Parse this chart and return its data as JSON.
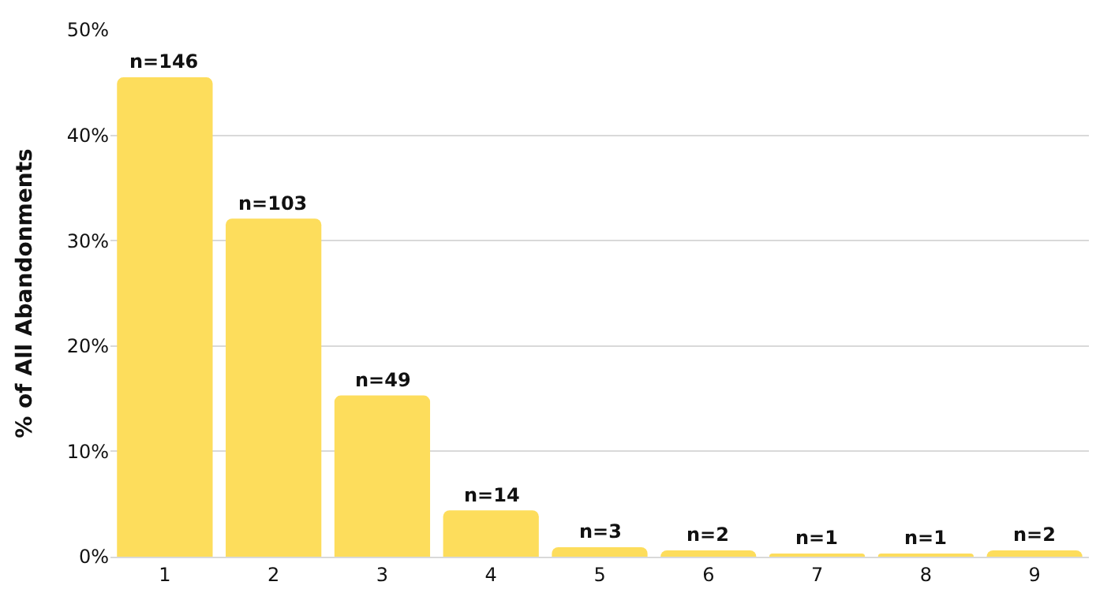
{
  "chart_data": {
    "type": "bar",
    "ylabel": "% of All Abandonments",
    "categories": [
      "1",
      "2",
      "3",
      "4",
      "5",
      "6",
      "7",
      "8",
      "9"
    ],
    "values": [
      45.5,
      32.1,
      15.3,
      4.4,
      0.9,
      0.6,
      0.3,
      0.3,
      0.6
    ],
    "annotations": [
      {
        "text": "n=146",
        "x": "1",
        "y": 45.5
      },
      {
        "text": "n=103",
        "x": "2",
        "y": 32.1
      },
      {
        "text": "n=49",
        "x": "3",
        "y": 15.3
      },
      {
        "text": "n=14",
        "x": "4",
        "y": 4.4
      },
      {
        "text": "n=3",
        "x": "5",
        "y": 0.9
      },
      {
        "text": "n=2",
        "x": "6",
        "y": 0.6
      },
      {
        "text": "n=1",
        "x": "7",
        "y": 0.3
      },
      {
        "text": "n=1",
        "x": "8",
        "y": 0.3
      },
      {
        "text": "n=2",
        "x": "9",
        "y": 0.6
      }
    ],
    "color": "#fddd5c",
    "ylim": [
      0,
      50
    ],
    "yticks": [
      {
        "value": 0,
        "label": "0%"
      },
      {
        "value": 10,
        "label": "10%"
      },
      {
        "value": 20,
        "label": "20%"
      },
      {
        "value": 30,
        "label": "30%"
      },
      {
        "value": 40,
        "label": "40%"
      },
      {
        "value": 50,
        "label": "50%"
      }
    ],
    "grid": "y"
  }
}
